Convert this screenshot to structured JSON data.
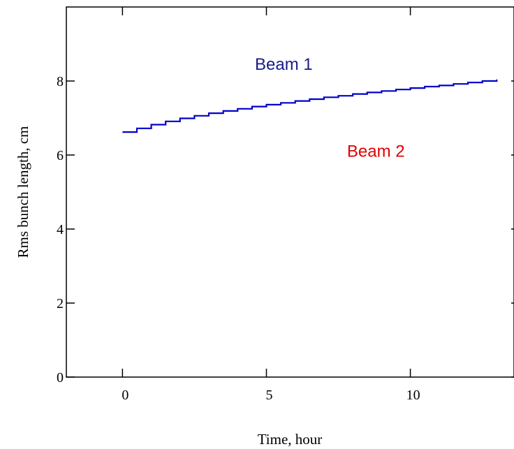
{
  "chart_data": {
    "type": "line",
    "title": "",
    "xlabel": "Time, hour",
    "ylabel": "Rms bunch length, cm",
    "xlim": [
      -1.95,
      13.6
    ],
    "ylim": [
      0,
      10
    ],
    "x_ticks": [
      0,
      5,
      10
    ],
    "y_ticks": [
      0,
      2,
      4,
      6,
      8
    ],
    "x_tick_labels": [
      "0",
      "5",
      "10"
    ],
    "y_tick_labels": [
      "0",
      "2",
      "4",
      "6",
      "8"
    ],
    "grid": false,
    "legend": "none",
    "series": [
      {
        "name": "Beam 1",
        "color": "#0000cc",
        "step": true,
        "x": [
          0,
          0.5,
          1,
          1.5,
          2,
          2.5,
          3,
          3.5,
          4,
          4.5,
          5,
          5.5,
          6,
          6.5,
          7,
          7.5,
          8,
          8.5,
          9,
          9.5,
          10,
          10.5,
          11,
          11.5,
          12,
          12.5,
          13
        ],
        "y": [
          6.62,
          6.72,
          6.82,
          6.91,
          6.99,
          7.06,
          7.13,
          7.19,
          7.25,
          7.31,
          7.36,
          7.41,
          7.46,
          7.51,
          7.56,
          7.6,
          7.65,
          7.69,
          7.73,
          7.77,
          7.81,
          7.85,
          7.88,
          7.92,
          7.96,
          8.0,
          8.04
        ]
      }
    ],
    "annotations": [
      {
        "text": "Beam 1",
        "x": 4.6,
        "y": 8.3,
        "color": "#1a1a8c"
      },
      {
        "text": "Beam 2",
        "x": 7.8,
        "y": 5.95,
        "color": "#e00000"
      }
    ]
  }
}
